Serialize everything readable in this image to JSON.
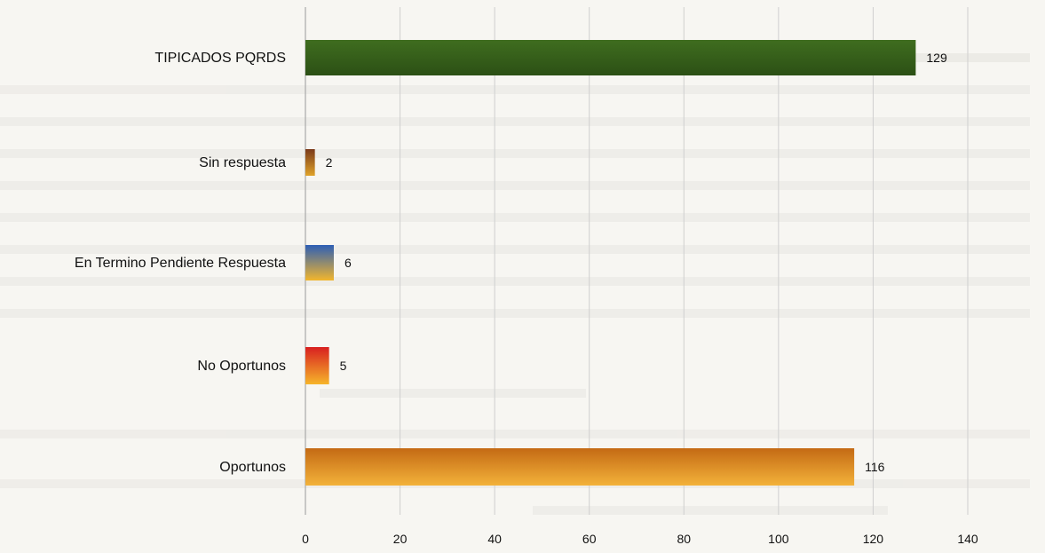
{
  "chart_data": {
    "type": "bar",
    "orientation": "horizontal",
    "categories": [
      "TIPICADOS PQRDS",
      "Sin respuesta",
      "En Termino Pendiente Respuesta",
      "No Oportunos",
      "Oportunos"
    ],
    "values": [
      129,
      2,
      6,
      5,
      116
    ],
    "data_labels": [
      "129",
      "2",
      "6",
      "5",
      "116"
    ],
    "xlim": [
      0,
      140
    ],
    "x_ticks": [
      "0",
      "20",
      "40",
      "60",
      "80",
      "100",
      "120",
      "140"
    ],
    "grid": "vertical",
    "legend": "none",
    "colors": {
      "TIPICADOS PQRDS": [
        "#3f6d1f",
        "#2c5015"
      ],
      "Sin respuesta": [
        "#7a3a1a",
        "#e0a32a"
      ],
      "En Termino Pendiente Respuesta": [
        "#2d5fb5",
        "#f2b62c"
      ],
      "No Oportunos": [
        "#d82020",
        "#f6b52a"
      ],
      "Oportunos": [
        "#c46a14",
        "#f3b23a"
      ]
    }
  }
}
